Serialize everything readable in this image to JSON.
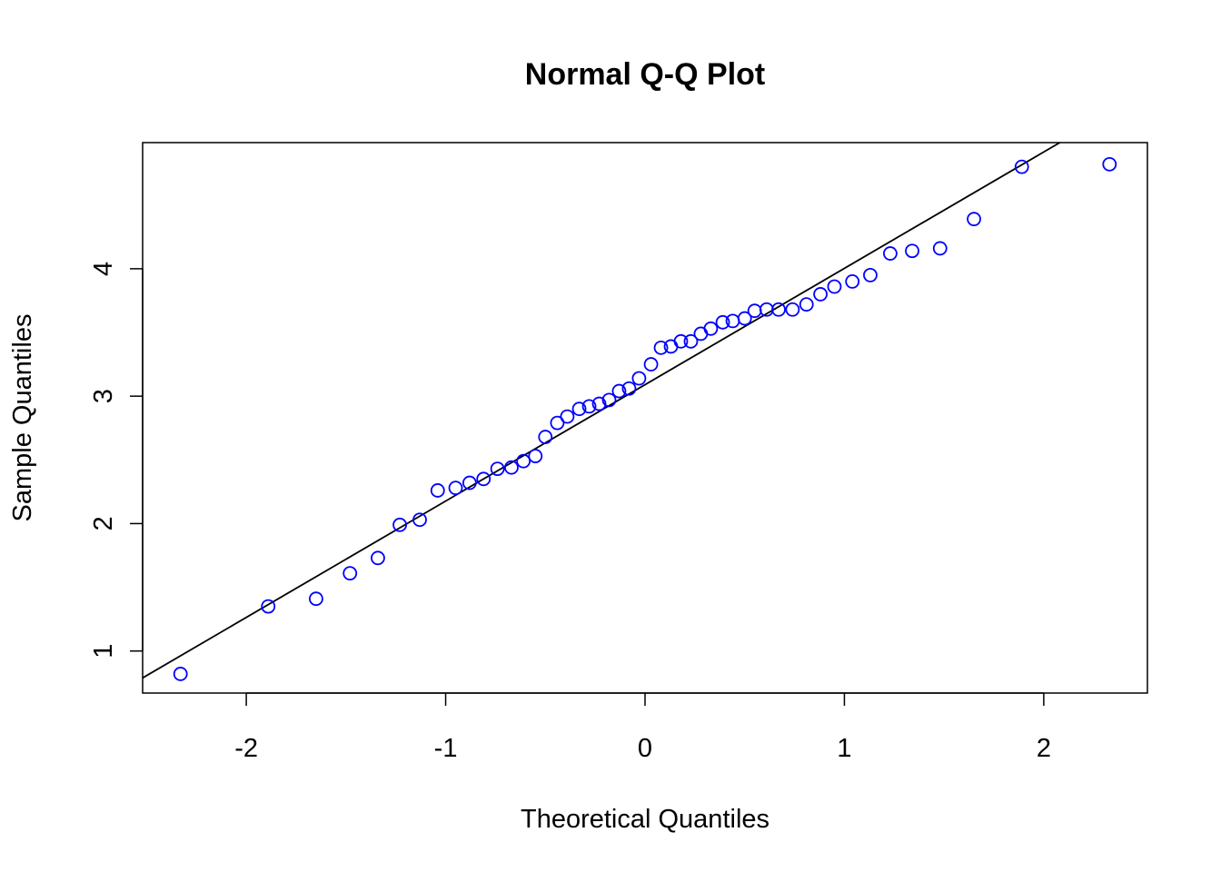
{
  "chart_data": {
    "type": "scatter",
    "title": "Normal Q-Q Plot",
    "xlabel": "Theoretical Quantiles",
    "ylabel": "Sample Quantiles",
    "xlim": [
      -2.52,
      2.52
    ],
    "ylim": [
      0.67,
      4.99
    ],
    "x_ticks": [
      -2,
      -1,
      0,
      1,
      2
    ],
    "x_tick_labels": [
      "-2",
      "-1",
      "0",
      "1",
      "2"
    ],
    "y_ticks": [
      1,
      2,
      3,
      4
    ],
    "y_tick_labels": [
      "1",
      "2",
      "3",
      "4"
    ],
    "grid": false,
    "point_color": "#0000ff",
    "line_color": "#000000",
    "reference_line": {
      "intercept": 3.09,
      "slope": 0.9132
    },
    "points": [
      {
        "x": -2.33,
        "y": 0.82
      },
      {
        "x": -1.89,
        "y": 1.35
      },
      {
        "x": -1.65,
        "y": 1.41
      },
      {
        "x": -1.48,
        "y": 1.61
      },
      {
        "x": -1.34,
        "y": 1.73
      },
      {
        "x": -1.23,
        "y": 1.99
      },
      {
        "x": -1.13,
        "y": 2.03
      },
      {
        "x": -1.04,
        "y": 2.26
      },
      {
        "x": -0.95,
        "y": 2.28
      },
      {
        "x": -0.88,
        "y": 2.32
      },
      {
        "x": -0.81,
        "y": 2.35
      },
      {
        "x": -0.74,
        "y": 2.43
      },
      {
        "x": -0.67,
        "y": 2.44
      },
      {
        "x": -0.61,
        "y": 2.49
      },
      {
        "x": -0.55,
        "y": 2.53
      },
      {
        "x": -0.5,
        "y": 2.68
      },
      {
        "x": -0.44,
        "y": 2.79
      },
      {
        "x": -0.39,
        "y": 2.84
      },
      {
        "x": -0.33,
        "y": 2.9
      },
      {
        "x": -0.28,
        "y": 2.92
      },
      {
        "x": -0.23,
        "y": 2.94
      },
      {
        "x": -0.18,
        "y": 2.97
      },
      {
        "x": -0.13,
        "y": 3.04
      },
      {
        "x": -0.08,
        "y": 3.06
      },
      {
        "x": -0.03,
        "y": 3.14
      },
      {
        "x": 0.03,
        "y": 3.25
      },
      {
        "x": 0.08,
        "y": 3.38
      },
      {
        "x": 0.13,
        "y": 3.39
      },
      {
        "x": 0.18,
        "y": 3.43
      },
      {
        "x": 0.23,
        "y": 3.43
      },
      {
        "x": 0.28,
        "y": 3.49
      },
      {
        "x": 0.33,
        "y": 3.53
      },
      {
        "x": 0.39,
        "y": 3.58
      },
      {
        "x": 0.44,
        "y": 3.59
      },
      {
        "x": 0.5,
        "y": 3.61
      },
      {
        "x": 0.55,
        "y": 3.67
      },
      {
        "x": 0.61,
        "y": 3.68
      },
      {
        "x": 0.67,
        "y": 3.68
      },
      {
        "x": 0.74,
        "y": 3.68
      },
      {
        "x": 0.81,
        "y": 3.72
      },
      {
        "x": 0.88,
        "y": 3.8
      },
      {
        "x": 0.95,
        "y": 3.86
      },
      {
        "x": 1.04,
        "y": 3.9
      },
      {
        "x": 1.13,
        "y": 3.95
      },
      {
        "x": 1.23,
        "y": 4.12
      },
      {
        "x": 1.34,
        "y": 4.14
      },
      {
        "x": 1.48,
        "y": 4.16
      },
      {
        "x": 1.65,
        "y": 4.39
      },
      {
        "x": 1.89,
        "y": 4.8
      },
      {
        "x": 2.33,
        "y": 4.82
      }
    ]
  }
}
